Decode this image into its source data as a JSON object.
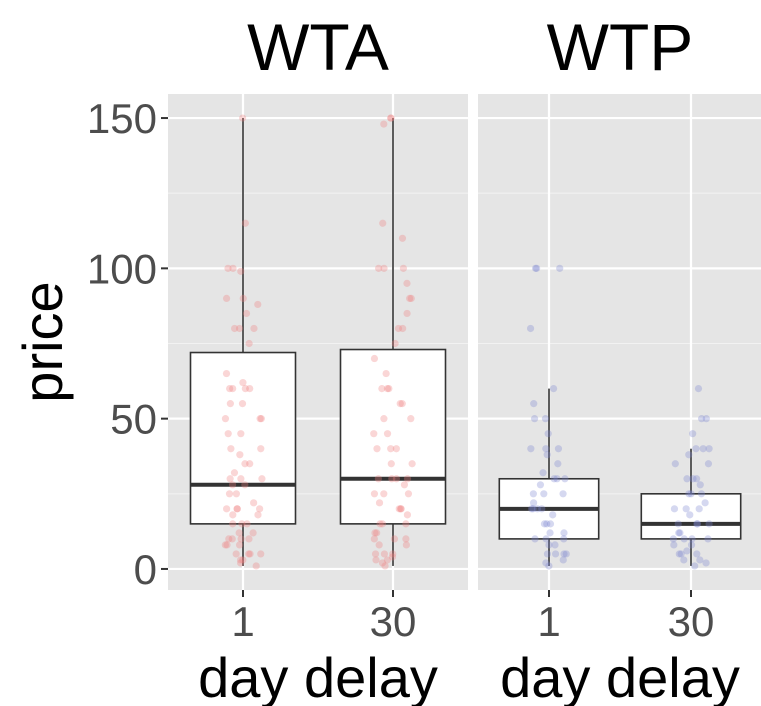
{
  "chart_data": {
    "type": "box",
    "ylabel": "price",
    "xlabel": "day delay",
    "ylim": [
      -7,
      158
    ],
    "yticks": [
      0,
      50,
      100,
      150
    ],
    "categories": [
      "1",
      "30"
    ],
    "grid": true,
    "panels": [
      {
        "title": "WTA",
        "point_color": "#f08080",
        "boxes": [
          {
            "category": "1",
            "min": 1,
            "q1": 15,
            "median": 28,
            "q3": 72,
            "max": 150,
            "points": [
              150,
              115,
              100,
              100,
              99,
              90,
              90,
              88,
              85,
              80,
              80,
              80,
              75,
              65,
              62,
              60,
              60,
              60,
              60,
              55,
              55,
              50,
              50,
              50,
              45,
              45,
              40,
              40,
              38,
              35,
              35,
              32,
              30,
              30,
              30,
              28,
              28,
              25,
              25,
              22,
              20,
              20,
              20,
              20,
              18,
              18,
              15,
              15,
              15,
              12,
              12,
              10,
              10,
              10,
              10,
              8,
              8,
              8,
              5,
              5,
              5,
              5,
              3,
              3,
              2,
              1
            ]
          },
          {
            "category": "30",
            "min": 1,
            "q1": 15,
            "median": 30,
            "q3": 73,
            "max": 150,
            "points": [
              150,
              150,
              148,
              115,
              110,
              100,
              100,
              100,
              95,
              90,
              90,
              85,
              80,
              80,
              75,
              70,
              65,
              60,
              60,
              60,
              55,
              55,
              50,
              50,
              45,
              45,
              40,
              40,
              40,
              35,
              35,
              30,
              30,
              30,
              30,
              28,
              25,
              25,
              25,
              22,
              20,
              20,
              20,
              18,
              15,
              15,
              15,
              12,
              12,
              10,
              10,
              10,
              8,
              8,
              5,
              5,
              5,
              4,
              3,
              3,
              2,
              1
            ]
          }
        ]
      },
      {
        "title": "WTP",
        "point_color": "#7b86cf",
        "boxes": [
          {
            "category": "1",
            "min": 1,
            "q1": 10,
            "median": 20,
            "q3": 30,
            "max": 60,
            "points": [
              100,
              100,
              100,
              80,
              60,
              55,
              50,
              50,
              45,
              40,
              40,
              40,
              38,
              35,
              32,
              30,
              30,
              30,
              28,
              25,
              25,
              25,
              22,
              20,
              20,
              20,
              20,
              18,
              15,
              15,
              15,
              12,
              12,
              10,
              10,
              10,
              8,
              8,
              5,
              5,
              5,
              5,
              3,
              2,
              1
            ]
          },
          {
            "category": "30",
            "min": 1,
            "q1": 10,
            "median": 15,
            "q3": 25,
            "max": 40,
            "points": [
              60,
              50,
              50,
              45,
              40,
              40,
              40,
              38,
              35,
              35,
              30,
              30,
              30,
              28,
              25,
              25,
              25,
              22,
              20,
              20,
              20,
              18,
              15,
              15,
              15,
              15,
              12,
              12,
              10,
              10,
              10,
              10,
              8,
              8,
              6,
              5,
              5,
              5,
              3,
              3,
              2,
              1
            ]
          }
        ]
      }
    ]
  }
}
